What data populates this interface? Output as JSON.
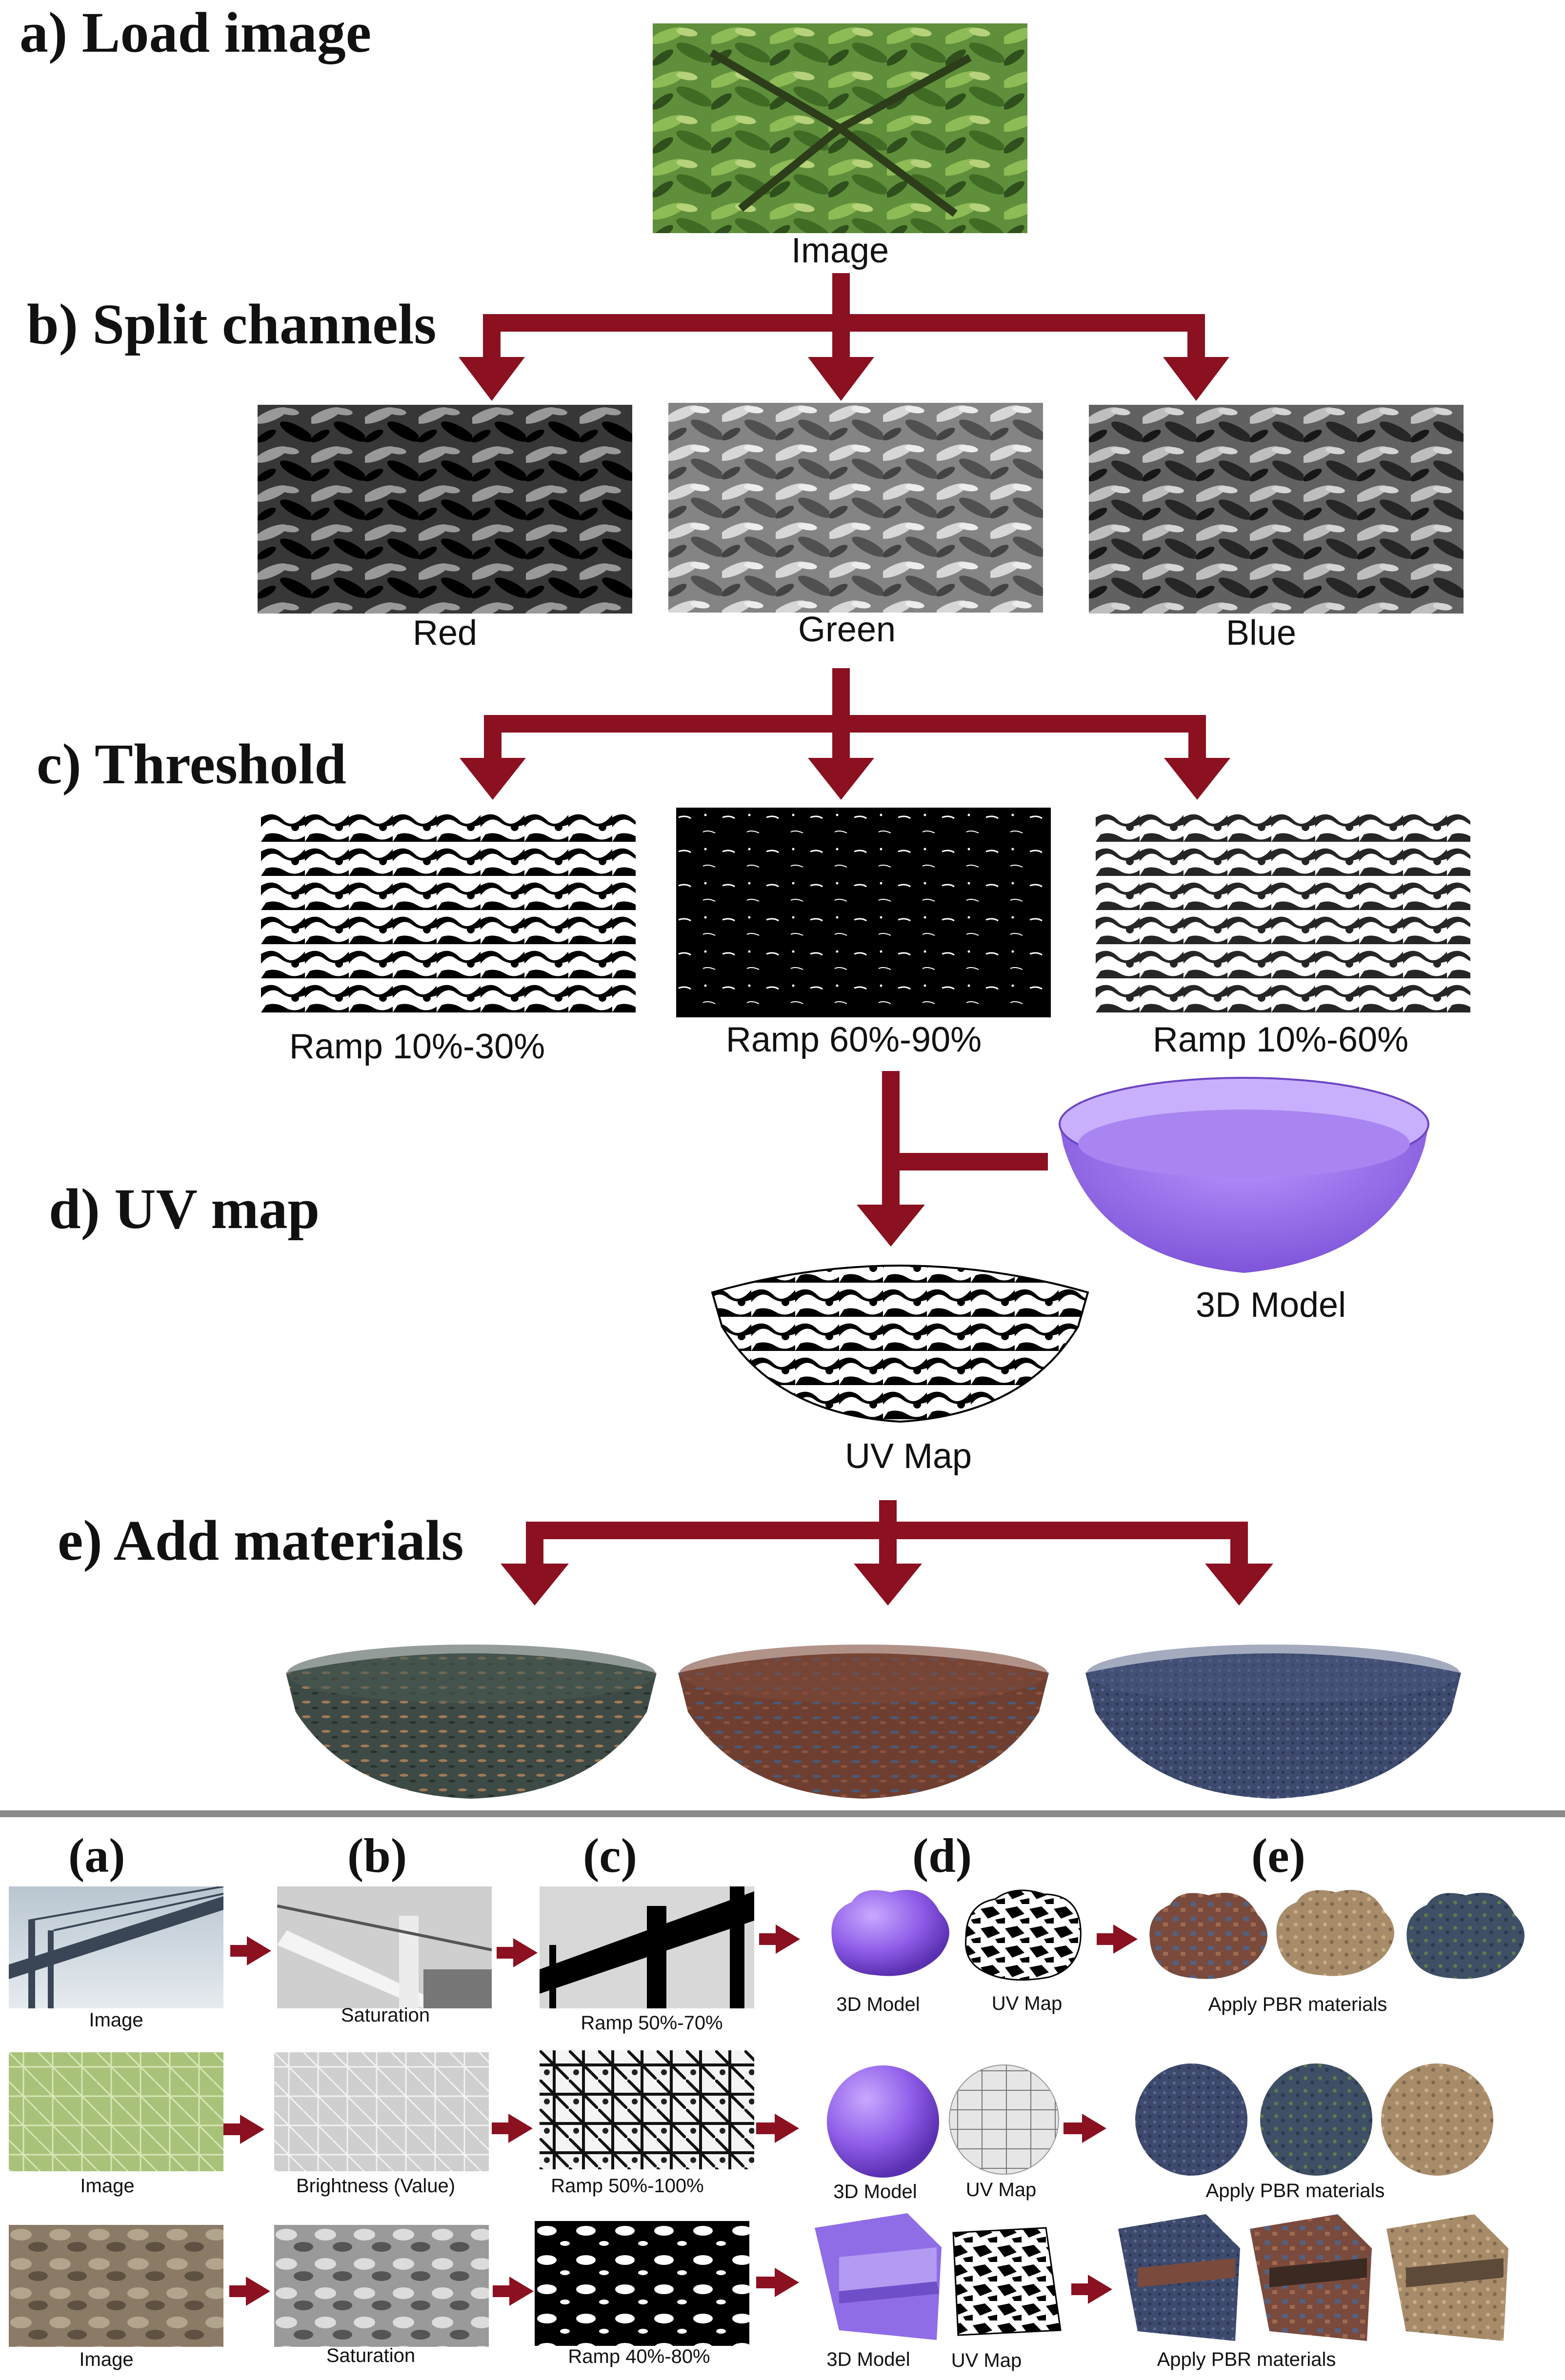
{
  "top": {
    "steps": {
      "a": "a) Load image",
      "b": "b) Split channels",
      "c": "c) Threshold",
      "d": "d) UV map",
      "e": "e) Add materials"
    },
    "captions": {
      "image": "Image",
      "red": "Red",
      "green": "Green",
      "blue": "Blue",
      "ramp1": "Ramp 10%-30%",
      "ramp2": "Ramp 60%-90%",
      "ramp3": "Ramp 10%-60%",
      "model": "3D Model",
      "uvmap": "UV Map"
    }
  },
  "bottom": {
    "columns": [
      "(a)",
      "(b)",
      "(c)",
      "(d)",
      "(e)"
    ],
    "rows": [
      {
        "image": "Image",
        "filter": "Saturation",
        "ramp": "Ramp 50%-70%",
        "model": "3D Model",
        "uv": "UV Map",
        "materials": "Apply PBR materials"
      },
      {
        "image": "Image",
        "filter": "Brightness (Value)",
        "ramp": "Ramp 50%-100%",
        "model": "3D Model",
        "uv": "UV Map",
        "materials": "Apply PBR materials"
      },
      {
        "image": "Image",
        "filter": "Saturation",
        "ramp": "Ramp 40%-80%",
        "model": "3D Model",
        "uv": "UV Map",
        "materials": "Apply PBR materials"
      }
    ]
  },
  "colors": {
    "arrow": "#8b1020",
    "purple": "#9b6cf0",
    "divider": "#8a8a8a"
  }
}
